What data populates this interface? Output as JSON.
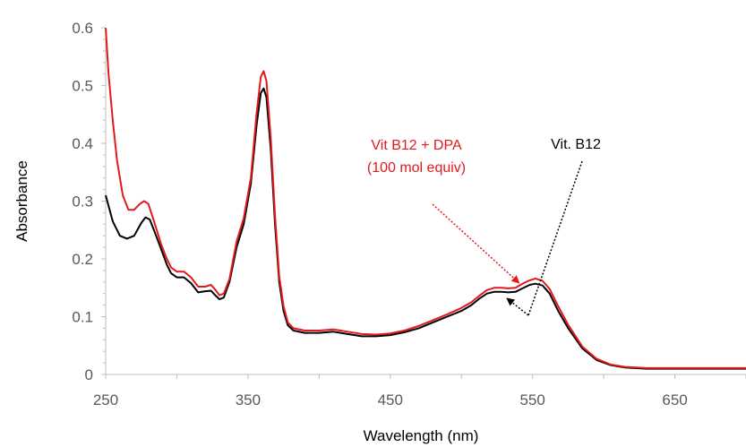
{
  "chart_data": {
    "type": "line",
    "xlabel": "Wavelength (nm)",
    "ylabel": "Absorbance",
    "xlim": [
      250,
      700
    ],
    "ylim": [
      0,
      0.6
    ],
    "x_ticks": [
      "250",
      "350",
      "450",
      "550",
      "650"
    ],
    "y_ticks": [
      "0",
      "0.1",
      "0.2",
      "0.3",
      "0.4",
      "0.5",
      "0.6"
    ],
    "grid": false,
    "series": [
      {
        "name": "Vit. B12",
        "color": "#000000",
        "points": [
          [
            250,
            0.31
          ],
          [
            255,
            0.265
          ],
          [
            260,
            0.24
          ],
          [
            265,
            0.235
          ],
          [
            270,
            0.24
          ],
          [
            275,
            0.262
          ],
          [
            278,
            0.272
          ],
          [
            281,
            0.268
          ],
          [
            285,
            0.243
          ],
          [
            290,
            0.21
          ],
          [
            293,
            0.19
          ],
          [
            296,
            0.175
          ],
          [
            300,
            0.168
          ],
          [
            305,
            0.168
          ],
          [
            310,
            0.158
          ],
          [
            315,
            0.142
          ],
          [
            320,
            0.144
          ],
          [
            324,
            0.145
          ],
          [
            327,
            0.137
          ],
          [
            330,
            0.13
          ],
          [
            333,
            0.133
          ],
          [
            337,
            0.16
          ],
          [
            342,
            0.22
          ],
          [
            347,
            0.26
          ],
          [
            352,
            0.33
          ],
          [
            356,
            0.43
          ],
          [
            359,
            0.487
          ],
          [
            361,
            0.495
          ],
          [
            363,
            0.48
          ],
          [
            366,
            0.39
          ],
          [
            369,
            0.26
          ],
          [
            372,
            0.16
          ],
          [
            375,
            0.11
          ],
          [
            378,
            0.085
          ],
          [
            382,
            0.076
          ],
          [
            390,
            0.072
          ],
          [
            400,
            0.072
          ],
          [
            410,
            0.074
          ],
          [
            420,
            0.07
          ],
          [
            430,
            0.066
          ],
          [
            440,
            0.066
          ],
          [
            450,
            0.068
          ],
          [
            460,
            0.073
          ],
          [
            470,
            0.08
          ],
          [
            480,
            0.09
          ],
          [
            490,
            0.1
          ],
          [
            500,
            0.11
          ],
          [
            507,
            0.12
          ],
          [
            513,
            0.132
          ],
          [
            518,
            0.14
          ],
          [
            523,
            0.143
          ],
          [
            528,
            0.143
          ],
          [
            533,
            0.142
          ],
          [
            538,
            0.143
          ],
          [
            543,
            0.149
          ],
          [
            548,
            0.155
          ],
          [
            552,
            0.157
          ],
          [
            557,
            0.154
          ],
          [
            562,
            0.14
          ],
          [
            568,
            0.11
          ],
          [
            575,
            0.08
          ],
          [
            585,
            0.045
          ],
          [
            595,
            0.025
          ],
          [
            605,
            0.016
          ],
          [
            615,
            0.012
          ],
          [
            630,
            0.01
          ],
          [
            650,
            0.01
          ],
          [
            700,
            0.01
          ]
        ]
      },
      {
        "name": "Vit B12 + DPA (100 mol equiv)",
        "color": "#e31a1c",
        "points": [
          [
            250,
            0.6
          ],
          [
            252,
            0.52
          ],
          [
            255,
            0.44
          ],
          [
            258,
            0.37
          ],
          [
            262,
            0.31
          ],
          [
            266,
            0.285
          ],
          [
            270,
            0.285
          ],
          [
            274,
            0.295
          ],
          [
            277,
            0.3
          ],
          [
            280,
            0.295
          ],
          [
            284,
            0.265
          ],
          [
            289,
            0.225
          ],
          [
            293,
            0.2
          ],
          [
            296,
            0.185
          ],
          [
            300,
            0.178
          ],
          [
            305,
            0.178
          ],
          [
            310,
            0.168
          ],
          [
            315,
            0.152
          ],
          [
            320,
            0.152
          ],
          [
            324,
            0.155
          ],
          [
            327,
            0.147
          ],
          [
            330,
            0.137
          ],
          [
            333,
            0.14
          ],
          [
            337,
            0.165
          ],
          [
            342,
            0.23
          ],
          [
            347,
            0.27
          ],
          [
            352,
            0.34
          ],
          [
            356,
            0.45
          ],
          [
            359,
            0.515
          ],
          [
            361,
            0.525
          ],
          [
            363,
            0.508
          ],
          [
            366,
            0.41
          ],
          [
            369,
            0.275
          ],
          [
            372,
            0.17
          ],
          [
            375,
            0.118
          ],
          [
            378,
            0.09
          ],
          [
            382,
            0.08
          ],
          [
            390,
            0.076
          ],
          [
            400,
            0.076
          ],
          [
            410,
            0.078
          ],
          [
            420,
            0.074
          ],
          [
            430,
            0.07
          ],
          [
            440,
            0.069
          ],
          [
            450,
            0.071
          ],
          [
            460,
            0.076
          ],
          [
            470,
            0.084
          ],
          [
            480,
            0.094
          ],
          [
            490,
            0.104
          ],
          [
            500,
            0.115
          ],
          [
            507,
            0.125
          ],
          [
            513,
            0.137
          ],
          [
            518,
            0.146
          ],
          [
            523,
            0.15
          ],
          [
            528,
            0.15
          ],
          [
            533,
            0.149
          ],
          [
            538,
            0.15
          ],
          [
            543,
            0.157
          ],
          [
            548,
            0.163
          ],
          [
            552,
            0.166
          ],
          [
            557,
            0.162
          ],
          [
            562,
            0.148
          ],
          [
            568,
            0.118
          ],
          [
            575,
            0.086
          ],
          [
            585,
            0.048
          ],
          [
            595,
            0.027
          ],
          [
            605,
            0.017
          ],
          [
            615,
            0.013
          ],
          [
            630,
            0.011
          ],
          [
            650,
            0.011
          ],
          [
            700,
            0.011
          ]
        ]
      }
    ],
    "annotations": [
      {
        "lines": [
          "Vit B12 + DPA",
          "(100 mol equiv)"
        ],
        "color": "#e31a1c",
        "target": [
          528,
          0.152
        ],
        "anchor": [
          500,
          0.175
        ]
      },
      {
        "lines": [
          "Vit. B12"
        ],
        "color": "#000000",
        "target": [
          528,
          0.141
        ],
        "anchor": [
          545,
          0.1
        ],
        "via": [
          585,
          0.4
        ]
      }
    ]
  }
}
